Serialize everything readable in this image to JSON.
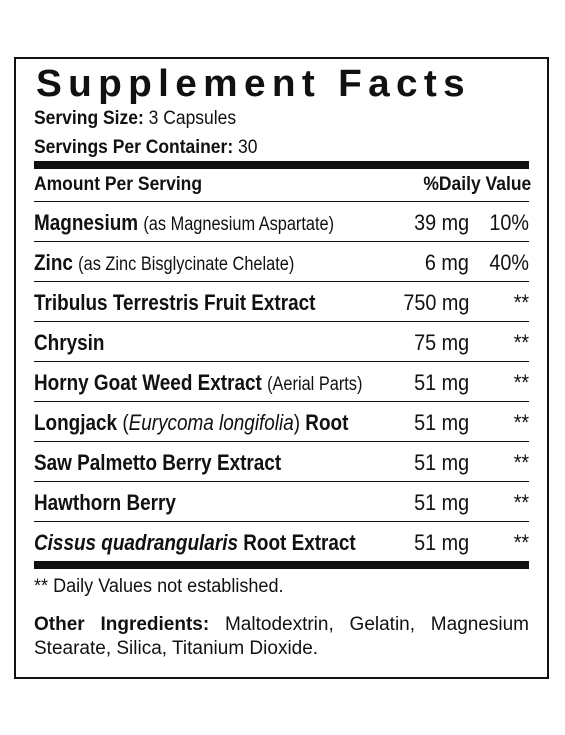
{
  "label": {
    "title": "Supplement Facts",
    "serving_size": {
      "label": "Serving Size:",
      "value": "3 Capsules"
    },
    "servings_per_container": {
      "label": "Servings Per Container:",
      "value": "30"
    },
    "header": {
      "amount": "Amount Per Serving",
      "dv": "%Daily Value"
    },
    "rows": [
      {
        "name": [
          "Magnesium",
          "(as Magnesium Aspartate)"
        ],
        "amount": "39 mg",
        "dv": "10%"
      },
      {
        "name": [
          "Zinc",
          "(as Zinc Bisglycinate Chelate)"
        ],
        "amount": "6 mg",
        "dv": "40%"
      },
      {
        "name": [
          "Tribulus Terrestris Fruit Extract"
        ],
        "amount": "750 mg",
        "dv": "**"
      },
      {
        "name": [
          "Chrysin"
        ],
        "amount": "75 mg",
        "dv": "**"
      },
      {
        "name": [
          "Horny Goat Weed Extract",
          "(Aerial Parts)"
        ],
        "amount": "51 mg",
        "dv": "**"
      },
      {
        "name": [
          "Longjack",
          "(",
          "Eurycoma longifolia",
          ")",
          "Root"
        ],
        "amount": "51 mg",
        "dv": "**"
      },
      {
        "name": [
          "Saw Palmetto Berry Extract"
        ],
        "amount": "51 mg",
        "dv": "**"
      },
      {
        "name": [
          "Hawthorn Berry"
        ],
        "amount": "51 mg",
        "dv": "**"
      },
      {
        "name": [
          "Cissus quadrangularis",
          "Root Extract"
        ],
        "amount": "51 mg",
        "dv": "**"
      }
    ],
    "footnote": "** Daily Values not established.",
    "other_ingredients": {
      "label": "Other Ingredients:",
      "value": "Maltodextrin, Gelatin, Magnesium Stearate, Silica, Titanium Dioxide."
    }
  }
}
